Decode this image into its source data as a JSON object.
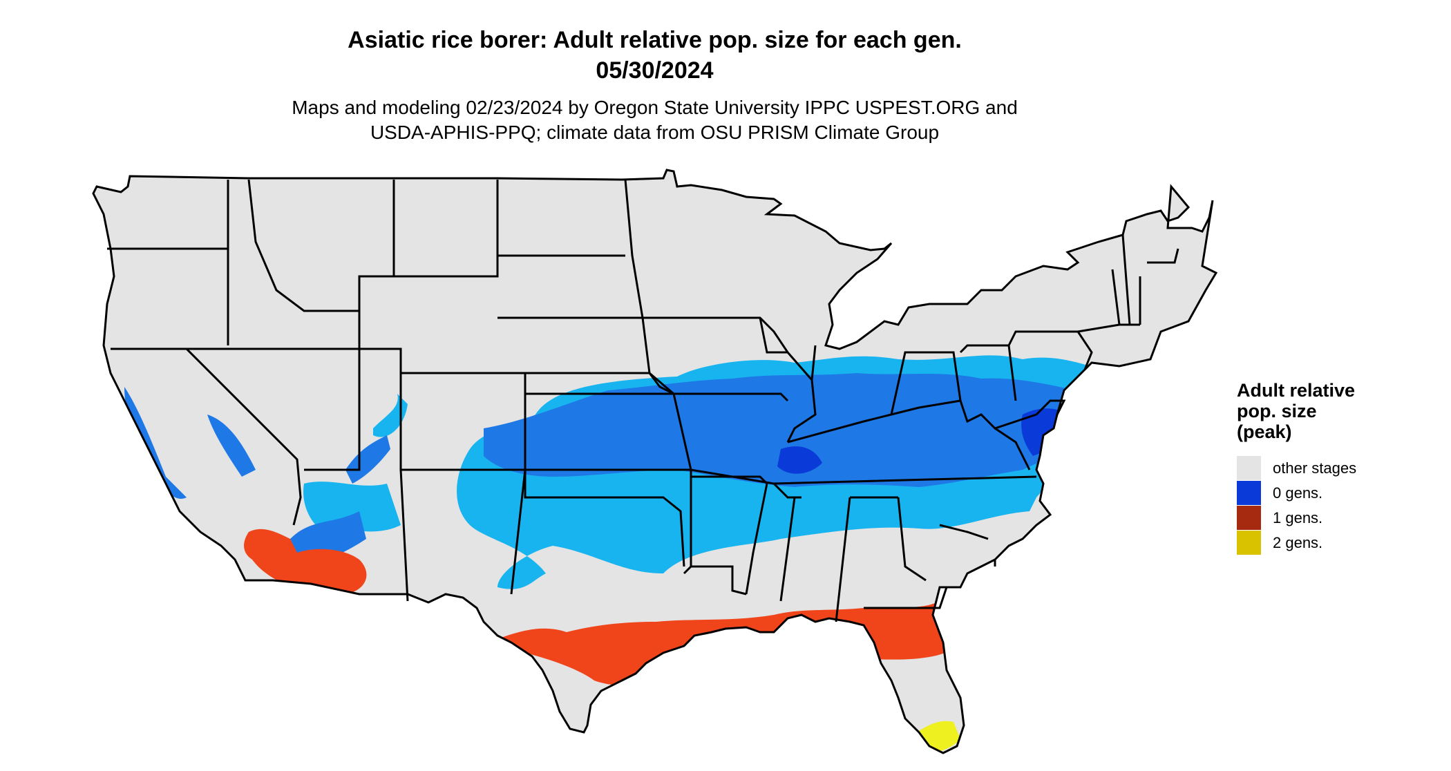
{
  "title": {
    "line1": "Asiatic rice borer: Adult relative pop. size for each gen.",
    "line2": "05/30/2024"
  },
  "subtitle": {
    "line1": "Maps and modeling 02/23/2024 by Oregon State University IPPC USPEST.ORG and",
    "line2": "USDA-APHIS-PPQ; climate data from OSU PRISM Climate Group"
  },
  "legend": {
    "title_lines": [
      "Adult relative",
      "pop. size",
      "(peak)"
    ],
    "items": [
      {
        "label": "other stages",
        "color": "#e4e4e4"
      },
      {
        "label": "0 gens.",
        "color": "#0a3ad8"
      },
      {
        "label": "1 gens.",
        "color": "#a52a10"
      },
      {
        "label": "2 gens.",
        "color": "#d9c200"
      }
    ]
  },
  "map_colors": {
    "land": "#e4e4e4",
    "light_blue": "#18b4ef",
    "mid_blue": "#1e78e6",
    "dark_blue": "#0a3ad8",
    "orange": "#f0441a",
    "dark_red": "#a52a10",
    "yellow": "#eef020",
    "borders": "#000000"
  }
}
